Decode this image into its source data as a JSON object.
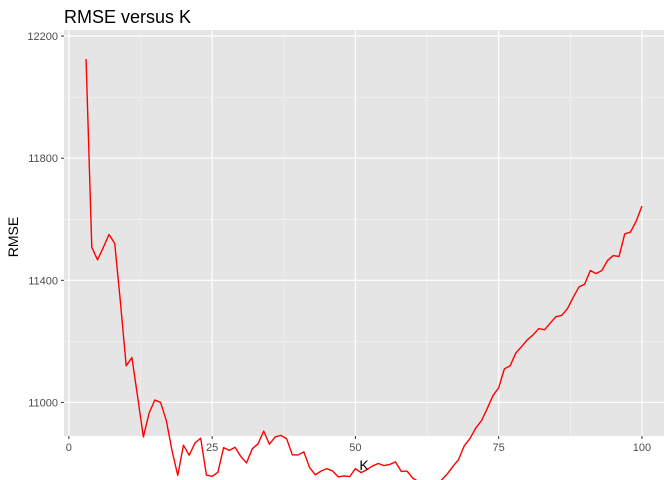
{
  "chart_data": {
    "type": "line",
    "title": "RMSE versus K",
    "xlabel": "K",
    "ylabel": "RMSE",
    "xlim": [
      -0.85,
      103.85
    ],
    "ylim": [
      10890,
      12220
    ],
    "x_ticks": [
      0,
      25,
      50,
      75,
      100
    ],
    "y_ticks": [
      11000,
      11400,
      11800,
      12200
    ],
    "grid": true,
    "line_color": "#ff0000",
    "panel_background": "#e5e5e5",
    "series": [
      {
        "x": [
          3,
          4,
          5,
          6,
          7,
          8,
          9,
          10,
          11,
          12,
          13,
          14,
          15,
          16,
          17,
          18,
          19,
          20,
          21,
          22,
          23,
          24,
          25,
          26,
          27,
          28,
          29,
          30,
          31,
          32,
          33,
          34,
          35,
          36,
          37,
          38,
          39,
          40,
          41,
          42,
          43,
          44,
          45,
          46,
          47,
          48,
          49,
          50,
          51,
          52,
          53,
          54,
          55,
          56,
          57,
          58,
          59,
          60,
          61,
          62,
          63,
          64,
          65,
          66,
          67,
          68,
          69,
          70,
          71,
          72,
          73,
          74,
          75,
          76,
          77,
          78,
          79,
          80,
          81,
          82,
          83,
          84,
          85,
          86,
          87,
          88,
          89,
          90,
          91,
          92,
          93,
          94,
          95,
          96,
          97,
          98,
          99,
          100
        ],
        "values": [
          12125,
          11508,
          11467,
          11507,
          11550,
          11521,
          11328,
          11120,
          11147,
          11018,
          10887,
          10965,
          11008,
          11000,
          10941,
          10842,
          10761,
          10860,
          10827,
          10867,
          10883,
          10762,
          10758,
          10771,
          10852,
          10843,
          10853,
          10823,
          10802,
          10848,
          10864,
          10906,
          10863,
          10887,
          10892,
          10881,
          10828,
          10828,
          10838,
          10787,
          10763,
          10775,
          10783,
          10776,
          10756,
          10759,
          10757,
          10783,
          10770,
          10780,
          10792,
          10800,
          10793,
          10797,
          10805,
          10774,
          10775,
          10752,
          10741,
          10740,
          10700,
          10724,
          10745,
          10765,
          10790,
          10813,
          10858,
          10882,
          10916,
          10940,
          10980,
          11022,
          11048,
          11110,
          11120,
          11162,
          11183,
          11205,
          11221,
          11242,
          11238,
          11260,
          11281,
          11285,
          11307,
          11344,
          11378,
          11387,
          11432,
          11422,
          11432,
          11465,
          11481,
          11478,
          11552,
          11558,
          11594,
          11643
        ]
      }
    ]
  }
}
